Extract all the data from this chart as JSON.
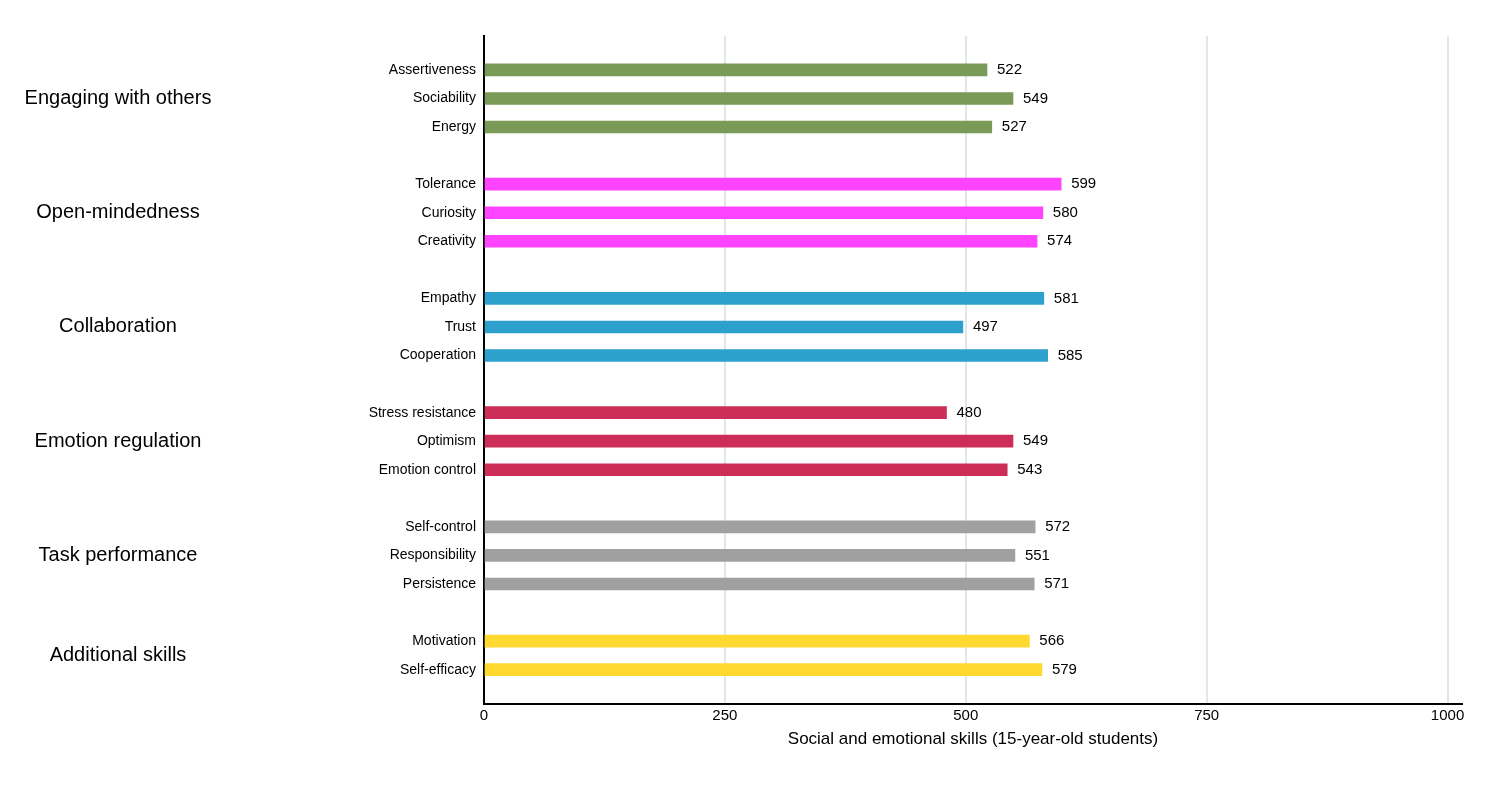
{
  "chart_data": {
    "type": "bar",
    "orientation": "horizontal",
    "xlabel": "Social and emotional skills (15-year-old students)",
    "categories": [
      "Assertiveness",
      "Sociability",
      "Energy",
      "Tolerance",
      "Curiosity",
      "Creativity",
      "Empathy",
      "Trust",
      "Cooperation",
      "Stress resistance",
      "Optimism",
      "Emotion control",
      "Self-control",
      "Responsibility",
      "Persistence",
      "Motivation",
      "Self-efficacy"
    ],
    "values": [
      522,
      549,
      527,
      599,
      580,
      574,
      581,
      497,
      585,
      480,
      549,
      543,
      572,
      551,
      571,
      566,
      579
    ],
    "colors": [
      "#7a9a58",
      "#7a9a58",
      "#7a9a58",
      "#ff44ff",
      "#ff44ff",
      "#ff44ff",
      "#2ea0cc",
      "#2ea0cc",
      "#2ea0cc",
      "#cc2e58",
      "#cc2e58",
      "#cc2e58",
      "#a0a0a0",
      "#a0a0a0",
      "#a0a0a0",
      "#ffd830",
      "#ffd830"
    ],
    "annotations": [
      "Engaging with others",
      "Open-mindedness",
      "Collaboration",
      "Emotion regulation",
      "Task performance",
      "Additional skills"
    ],
    "xlim": [
      0,
      1015
    ],
    "xticks": [
      0,
      250,
      500,
      750,
      1000
    ],
    "grid": "x",
    "legend": false,
    "data_labels": true
  }
}
